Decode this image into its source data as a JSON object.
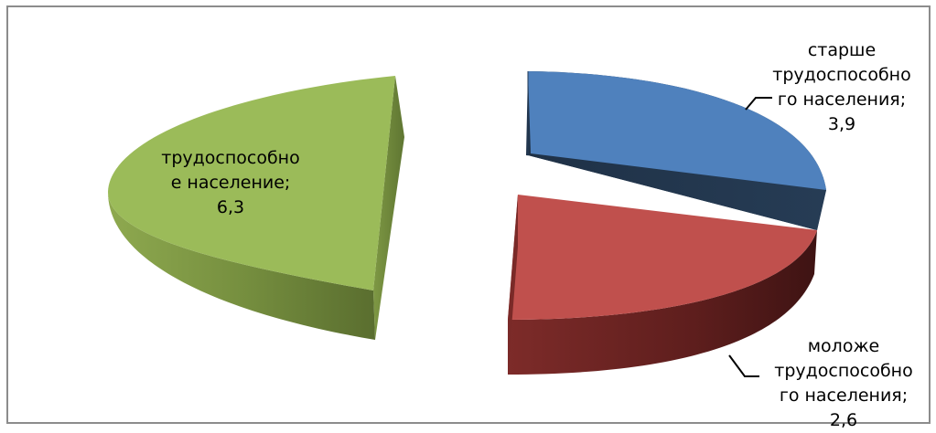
{
  "chart_data": {
    "type": "pie",
    "style": "exploded 3D pie",
    "title": "",
    "categories": [
      "старше трудоспособного населения",
      "моложе трудоспособного населения",
      "трудоспособное население"
    ],
    "values": [
      3.9,
      2.6,
      6.3
    ],
    "colors": [
      "#4f81bd",
      "#c0504d",
      "#9bbb59"
    ],
    "legend": "none",
    "data_labels": [
      "старше\nтрудоспособно\nго населения;\n3,9",
      "моложе\nтрудоспособно\nго населения;\n2,6",
      "трудоспособно\nе население;\n6,3"
    ]
  }
}
